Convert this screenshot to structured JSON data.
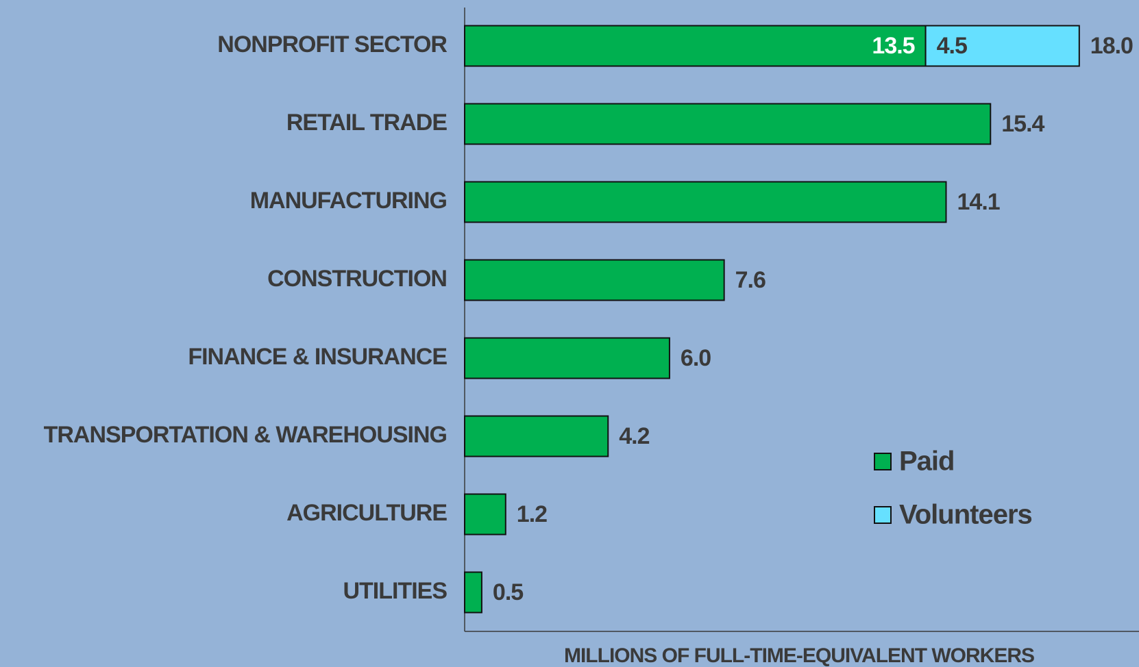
{
  "chart_data": {
    "type": "hbar_stacked",
    "categories": [
      "NONPROFIT SECTOR",
      "RETAIL TRADE",
      "MANUFACTURING",
      "CONSTRUCTION",
      "FINANCE & INSURANCE",
      "TRANSPORTATION & WAREHOUSING",
      "AGRICULTURE",
      "UTILITIES"
    ],
    "series": [
      {
        "name": "Paid",
        "color": "#00b050",
        "values": [
          13.5,
          15.4,
          14.1,
          7.6,
          6.0,
          4.2,
          1.2,
          0.5
        ],
        "value_labels": [
          "13.5",
          null,
          null,
          null,
          null,
          null,
          null,
          null
        ]
      },
      {
        "name": "Volunteers",
        "color": "#66e0ff",
        "values": [
          4.5,
          null,
          null,
          null,
          null,
          null,
          null,
          null
        ],
        "value_labels": [
          "4.5",
          null,
          null,
          null,
          null,
          null,
          null,
          null
        ]
      }
    ],
    "totals": [
      18.0,
      15.4,
      14.1,
      7.6,
      6.0,
      4.2,
      1.2,
      0.5
    ],
    "total_labels": [
      "18.0",
      "15.4",
      "14.1",
      "7.6",
      "6.0",
      "4.2",
      "1.2",
      "0.5"
    ],
    "x_label": "MILLIONS OF FULL-TIME-EQUIVALENT WORKERS",
    "xlim": [
      0,
      19.75
    ],
    "legend": "lower right"
  }
}
